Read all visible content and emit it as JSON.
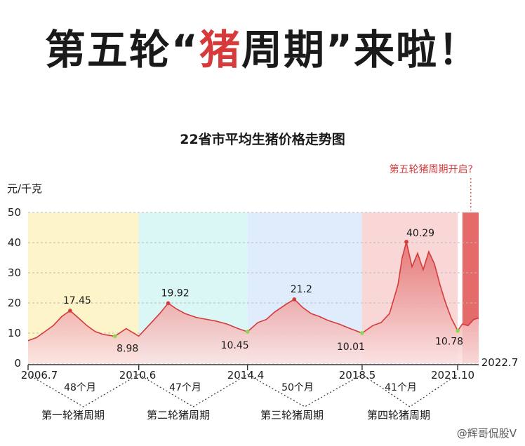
{
  "headline": {
    "before": "第五轮“",
    "highlight": "猪",
    "after": "周期”来啦！"
  },
  "watermark": "@辉哥侃股V",
  "chart_data": {
    "type": "area",
    "title": "22省市平均生猪价格走势图",
    "ylabel": "元/千克",
    "ylim": [
      0,
      50
    ],
    "yticks": [
      0,
      10,
      20,
      30,
      40,
      50
    ],
    "x_tick_labels": [
      "2006.7",
      "2010.6",
      "2014.4",
      "2018.5",
      "2021.10",
      "2022.7"
    ],
    "series": [
      {
        "x": [
          2006.5,
          2006.8,
          2007.1,
          2007.4,
          2007.7,
          2008.0,
          2008.3,
          2008.6,
          2008.9,
          2009.2,
          2009.6,
          2010.0,
          2010.45,
          2010.8,
          2011.2,
          2011.5,
          2011.8,
          2012.1,
          2012.5,
          2012.9,
          2013.2,
          2013.6,
          2014.0,
          2014.33,
          2014.7,
          2015.0,
          2015.3,
          2015.7,
          2016.0,
          2016.3,
          2016.6,
          2016.9,
          2017.2,
          2017.6,
          2018.0,
          2018.42,
          2018.8,
          2019.1,
          2019.4,
          2019.7,
          2019.85,
          2020.0,
          2020.2,
          2020.4,
          2020.6,
          2020.8,
          2021.0,
          2021.2,
          2021.4,
          2021.6,
          2021.83,
          2022.0,
          2022.2,
          2022.4,
          2022.58
        ],
        "y": [
          7.5,
          8.5,
          10.5,
          12.5,
          15.5,
          17.45,
          15.0,
          12.5,
          10.5,
          9.5,
          8.98,
          11.5,
          9.0,
          12.5,
          16.5,
          19.92,
          18.0,
          16.5,
          15.2,
          14.5,
          14.0,
          13.0,
          11.5,
          10.45,
          13.5,
          14.5,
          17.0,
          19.5,
          21.2,
          18.5,
          16.5,
          15.5,
          14.2,
          13.0,
          11.5,
          10.01,
          12.5,
          13.5,
          16.5,
          26.0,
          35.0,
          40.29,
          32.0,
          36.5,
          31.0,
          37.0,
          33.0,
          26.0,
          20.0,
          15.0,
          10.78,
          13.0,
          12.5,
          14.5,
          15.0
        ]
      }
    ],
    "data_labels": [
      {
        "x": 2008.0,
        "y": 17.45,
        "text": "17.45"
      },
      {
        "x": 2009.6,
        "y": 8.98,
        "text": "8.98"
      },
      {
        "x": 2011.5,
        "y": 19.92,
        "text": "19.92"
      },
      {
        "x": 2014.33,
        "y": 10.45,
        "text": "10.45"
      },
      {
        "x": 2016.0,
        "y": 21.2,
        "text": "21.2"
      },
      {
        "x": 2018.42,
        "y": 10.01,
        "text": "10.01"
      },
      {
        "x": 2020.0,
        "y": 40.29,
        "text": "40.29"
      },
      {
        "x": 2021.83,
        "y": 10.78,
        "text": "10.78"
      }
    ],
    "cycles": [
      {
        "name": "第一轮猪周期",
        "months": "48个月"
      },
      {
        "name": "第二轮猪周期",
        "months": "47个月"
      },
      {
        "name": "第三轮猪周期",
        "months": "50个月"
      },
      {
        "name": "第四轮猪周期",
        "months": "41个月"
      }
    ],
    "callout": "第五轮猪周期开启?",
    "colors": {
      "line": "#d63a3a",
      "area": "#f2a7a7",
      "accent": "#d63a3a",
      "low_marker": "#8bd64a"
    },
    "band_colors": [
      "#fdf0b8",
      "#cdf4f2",
      "#d3e6fb",
      "#f7c9c9",
      "#e05050"
    ]
  }
}
